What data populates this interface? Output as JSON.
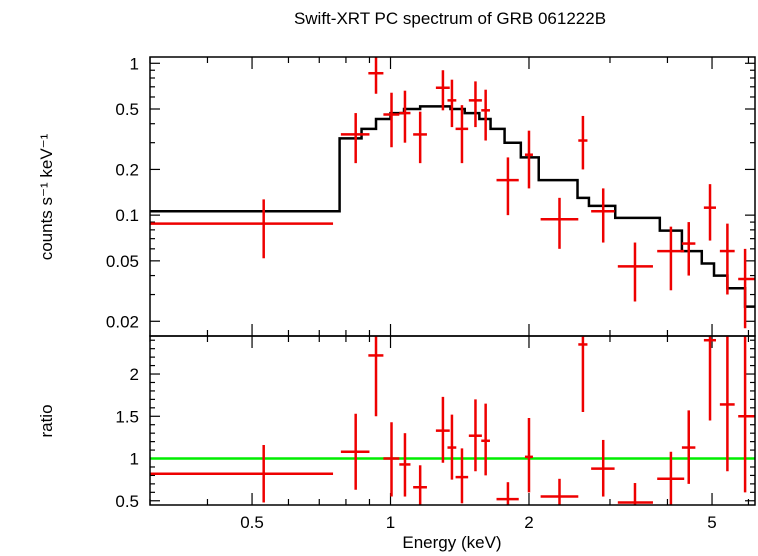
{
  "chart_data": [
    {
      "type": "scatter",
      "panel": "spectrum",
      "title": "Swift-XRT PC spectrum of GRB 061222B",
      "ylabel": "counts s⁻¹ keV⁻¹",
      "xscale": "log",
      "yscale": "log",
      "xlim": [
        0.3,
        6.2
      ],
      "ylim": [
        0.016,
        1.1
      ],
      "yticks": [
        {
          "value": 1,
          "label": "1"
        },
        {
          "value": 0.5,
          "label": "0.5"
        },
        {
          "value": 0.2,
          "label": "0.2"
        },
        {
          "value": 0.1,
          "label": "0.1"
        },
        {
          "value": 0.05,
          "label": "0.05"
        },
        {
          "value": 0.02,
          "label": "0.02"
        }
      ],
      "data_color": "#ee0000",
      "model_color": "#000000",
      "data": [
        {
          "x": 0.53,
          "xlo": 0.3,
          "xhi": 0.75,
          "y": 0.088,
          "ylo": 0.052,
          "yhi": 0.127
        },
        {
          "x": 0.84,
          "xlo": 0.78,
          "xhi": 0.9,
          "y": 0.34,
          "ylo": 0.22,
          "yhi": 0.47
        },
        {
          "x": 0.93,
          "xlo": 0.895,
          "xhi": 0.965,
          "y": 0.86,
          "ylo": 0.63,
          "yhi": 1.1
        },
        {
          "x": 1.005,
          "xlo": 0.965,
          "xhi": 1.045,
          "y": 0.46,
          "ylo": 0.28,
          "yhi": 0.64
        },
        {
          "x": 1.075,
          "xlo": 1.045,
          "xhi": 1.105,
          "y": 0.47,
          "ylo": 0.3,
          "yhi": 0.66
        },
        {
          "x": 1.16,
          "xlo": 1.12,
          "xhi": 1.2,
          "y": 0.34,
          "ylo": 0.22,
          "yhi": 0.48
        },
        {
          "x": 1.3,
          "xlo": 1.255,
          "xhi": 1.345,
          "y": 0.69,
          "ylo": 0.49,
          "yhi": 0.9
        },
        {
          "x": 1.36,
          "xlo": 1.33,
          "xhi": 1.39,
          "y": 0.57,
          "ylo": 0.38,
          "yhi": 0.78
        },
        {
          "x": 1.43,
          "xlo": 1.385,
          "xhi": 1.475,
          "y": 0.37,
          "ylo": 0.22,
          "yhi": 0.53
        },
        {
          "x": 1.53,
          "xlo": 1.48,
          "xhi": 1.58,
          "y": 0.57,
          "ylo": 0.38,
          "yhi": 0.76
        },
        {
          "x": 1.61,
          "xlo": 1.575,
          "xhi": 1.645,
          "y": 0.49,
          "ylo": 0.31,
          "yhi": 0.67
        },
        {
          "x": 1.8,
          "xlo": 1.7,
          "xhi": 1.9,
          "y": 0.17,
          "ylo": 0.1,
          "yhi": 0.24
        },
        {
          "x": 2.0,
          "xlo": 1.96,
          "xhi": 2.04,
          "y": 0.25,
          "ylo": 0.15,
          "yhi": 0.36
        },
        {
          "x": 2.33,
          "xlo": 2.12,
          "xhi": 2.56,
          "y": 0.094,
          "ylo": 0.06,
          "yhi": 0.13
        },
        {
          "x": 2.62,
          "xlo": 2.56,
          "xhi": 2.68,
          "y": 0.31,
          "ylo": 0.2,
          "yhi": 0.45
        },
        {
          "x": 2.9,
          "xlo": 2.73,
          "xhi": 3.07,
          "y": 0.106,
          "ylo": 0.066,
          "yhi": 0.15
        },
        {
          "x": 3.4,
          "xlo": 3.12,
          "xhi": 3.72,
          "y": 0.046,
          "ylo": 0.027,
          "yhi": 0.066
        },
        {
          "x": 4.07,
          "xlo": 3.8,
          "xhi": 4.35,
          "y": 0.058,
          "ylo": 0.032,
          "yhi": 0.084
        },
        {
          "x": 4.45,
          "xlo": 4.3,
          "xhi": 4.6,
          "y": 0.065,
          "ylo": 0.04,
          "yhi": 0.09
        },
        {
          "x": 4.95,
          "xlo": 4.8,
          "xhi": 5.1,
          "y": 0.112,
          "ylo": 0.068,
          "yhi": 0.16
        },
        {
          "x": 5.4,
          "xlo": 5.2,
          "xhi": 5.6,
          "y": 0.058,
          "ylo": 0.03,
          "yhi": 0.088
        },
        {
          "x": 5.9,
          "xlo": 5.7,
          "xhi": 6.2,
          "y": 0.038,
          "ylo": 0.018,
          "yhi": 0.06
        }
      ],
      "model_step": [
        {
          "x": 0.3,
          "y": 0.106
        },
        {
          "x": 0.775,
          "y": 0.32
        },
        {
          "x": 0.865,
          "y": 0.37
        },
        {
          "x": 0.93,
          "y": 0.43
        },
        {
          "x": 1.0,
          "y": 0.47
        },
        {
          "x": 1.07,
          "y": 0.5
        },
        {
          "x": 1.16,
          "y": 0.52
        },
        {
          "x": 1.35,
          "y": 0.5
        },
        {
          "x": 1.45,
          "y": 0.47
        },
        {
          "x": 1.56,
          "y": 0.43
        },
        {
          "x": 1.65,
          "y": 0.37
        },
        {
          "x": 1.77,
          "y": 0.3
        },
        {
          "x": 1.92,
          "y": 0.24
        },
        {
          "x": 2.1,
          "y": 0.17
        },
        {
          "x": 2.55,
          "y": 0.13
        },
        {
          "x": 2.7,
          "y": 0.115
        },
        {
          "x": 3.08,
          "y": 0.096
        },
        {
          "x": 3.85,
          "y": 0.079
        },
        {
          "x": 4.3,
          "y": 0.058
        },
        {
          "x": 4.75,
          "y": 0.048
        },
        {
          "x": 5.05,
          "y": 0.04
        },
        {
          "x": 5.4,
          "y": 0.033
        },
        {
          "x": 5.9,
          "y": 0.025
        },
        {
          "x": 6.2,
          "y": 0.025
        }
      ]
    },
    {
      "type": "scatter",
      "panel": "ratio",
      "xlabel": "Energy (keV)",
      "ylabel": "ratio",
      "xscale": "log",
      "yscale": "linear",
      "xlim": [
        0.3,
        6.2
      ],
      "ylim": [
        0.45,
        2.45
      ],
      "xticks": [
        {
          "value": 0.5,
          "label": "0.5"
        },
        {
          "value": 1,
          "label": "1"
        },
        {
          "value": 2,
          "label": "2"
        },
        {
          "value": 5,
          "label": "5"
        }
      ],
      "yticks": [
        {
          "value": 0.5,
          "label": "0.5"
        },
        {
          "value": 1,
          "label": "1"
        },
        {
          "value": 1.5,
          "label": "1.5"
        },
        {
          "value": 2,
          "label": "2"
        }
      ],
      "reference_line": 1,
      "reference_color": "#00ee00",
      "data_color": "#ee0000",
      "data": [
        {
          "x": 0.53,
          "xlo": 0.3,
          "xhi": 0.75,
          "y": 0.82,
          "ylo": 0.48,
          "yhi": 1.16
        },
        {
          "x": 0.84,
          "xlo": 0.78,
          "xhi": 0.9,
          "y": 1.08,
          "ylo": 0.63,
          "yhi": 1.53
        },
        {
          "x": 0.93,
          "xlo": 0.895,
          "xhi": 0.965,
          "y": 2.22,
          "ylo": 1.5,
          "yhi": 2.45
        },
        {
          "x": 1.005,
          "xlo": 0.965,
          "xhi": 1.045,
          "y": 1.0,
          "ylo": 0.55,
          "yhi": 1.43
        },
        {
          "x": 1.075,
          "xlo": 1.045,
          "xhi": 1.105,
          "y": 0.93,
          "ylo": 0.55,
          "yhi": 1.3
        },
        {
          "x": 1.16,
          "xlo": 1.12,
          "xhi": 1.2,
          "y": 0.66,
          "ylo": 0.45,
          "yhi": 0.92
        },
        {
          "x": 1.3,
          "xlo": 1.255,
          "xhi": 1.345,
          "y": 1.33,
          "ylo": 0.95,
          "yhi": 1.73
        },
        {
          "x": 1.36,
          "xlo": 1.33,
          "xhi": 1.39,
          "y": 1.13,
          "ylo": 0.75,
          "yhi": 1.52
        },
        {
          "x": 1.43,
          "xlo": 1.385,
          "xhi": 1.475,
          "y": 0.78,
          "ylo": 0.47,
          "yhi": 1.12
        },
        {
          "x": 1.53,
          "xlo": 1.48,
          "xhi": 1.58,
          "y": 1.27,
          "ylo": 0.85,
          "yhi": 1.7
        },
        {
          "x": 1.61,
          "xlo": 1.575,
          "xhi": 1.645,
          "y": 1.21,
          "ylo": 0.8,
          "yhi": 1.65
        },
        {
          "x": 1.8,
          "xlo": 1.7,
          "xhi": 1.9,
          "y": 0.52,
          "ylo": 0.45,
          "yhi": 0.72
        },
        {
          "x": 2.0,
          "xlo": 1.96,
          "xhi": 2.04,
          "y": 1.02,
          "ylo": 0.6,
          "yhi": 1.48
        },
        {
          "x": 2.33,
          "xlo": 2.12,
          "xhi": 2.56,
          "y": 0.55,
          "ylo": 0.45,
          "yhi": 0.76
        },
        {
          "x": 2.62,
          "xlo": 2.56,
          "xhi": 2.68,
          "y": 2.35,
          "ylo": 1.55,
          "yhi": 2.45
        },
        {
          "x": 2.9,
          "xlo": 2.73,
          "xhi": 3.07,
          "y": 0.88,
          "ylo": 0.55,
          "yhi": 1.22
        },
        {
          "x": 3.4,
          "xlo": 3.12,
          "xhi": 3.72,
          "y": 0.48,
          "ylo": 0.45,
          "yhi": 0.71
        },
        {
          "x": 4.07,
          "xlo": 3.8,
          "xhi": 4.35,
          "y": 0.76,
          "ylo": 0.45,
          "yhi": 1.08
        },
        {
          "x": 4.45,
          "xlo": 4.3,
          "xhi": 4.6,
          "y": 1.13,
          "ylo": 0.7,
          "yhi": 1.57
        },
        {
          "x": 4.95,
          "xlo": 4.8,
          "xhi": 5.1,
          "y": 2.4,
          "ylo": 1.45,
          "yhi": 2.45
        },
        {
          "x": 5.4,
          "xlo": 5.2,
          "xhi": 5.6,
          "y": 1.64,
          "ylo": 0.85,
          "yhi": 2.45
        },
        {
          "x": 5.9,
          "xlo": 5.7,
          "xhi": 6.2,
          "y": 1.5,
          "ylo": 0.6,
          "yhi": 2.45
        }
      ]
    }
  ]
}
